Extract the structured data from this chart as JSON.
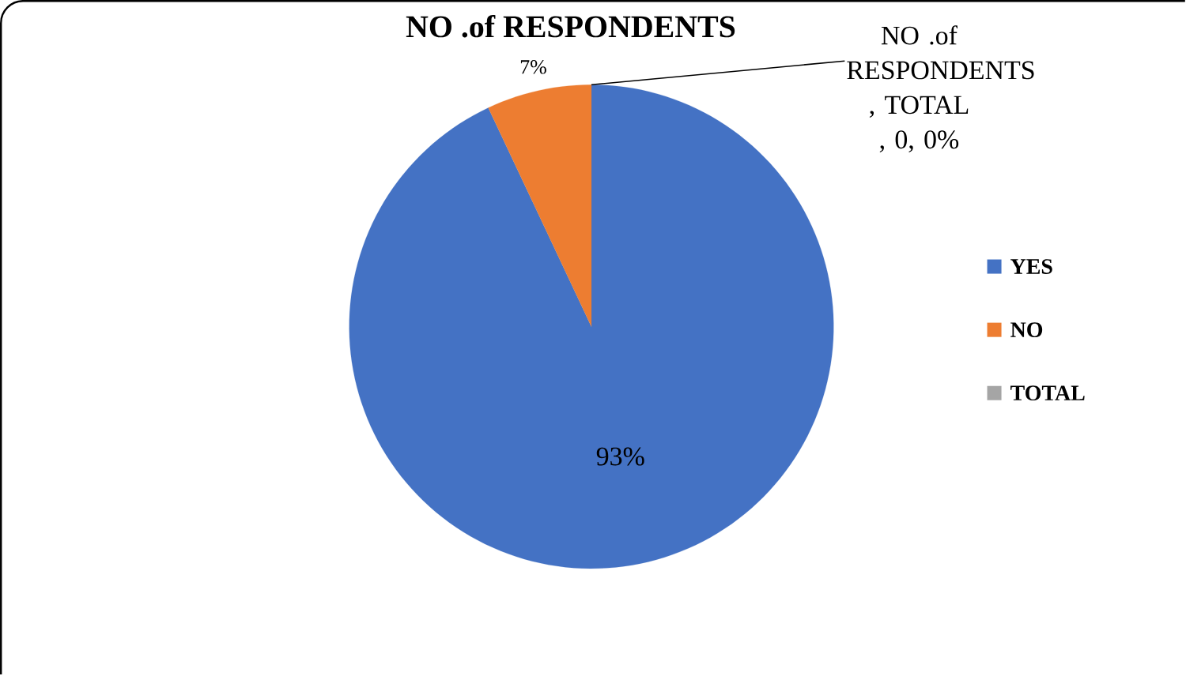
{
  "chart_data": {
    "type": "pie",
    "title": "NO .of RESPONDENTS",
    "categories": [
      "YES",
      "NO",
      "TOTAL"
    ],
    "values": [
      93,
      7,
      0
    ],
    "colors": [
      "#4472c4",
      "#ed7d31",
      "#a5a5a5"
    ],
    "value_labels": [
      "93%",
      "7%",
      "NO .of RESPONDENTS , TOTAL , 0, 0%"
    ],
    "legend": "right"
  }
}
